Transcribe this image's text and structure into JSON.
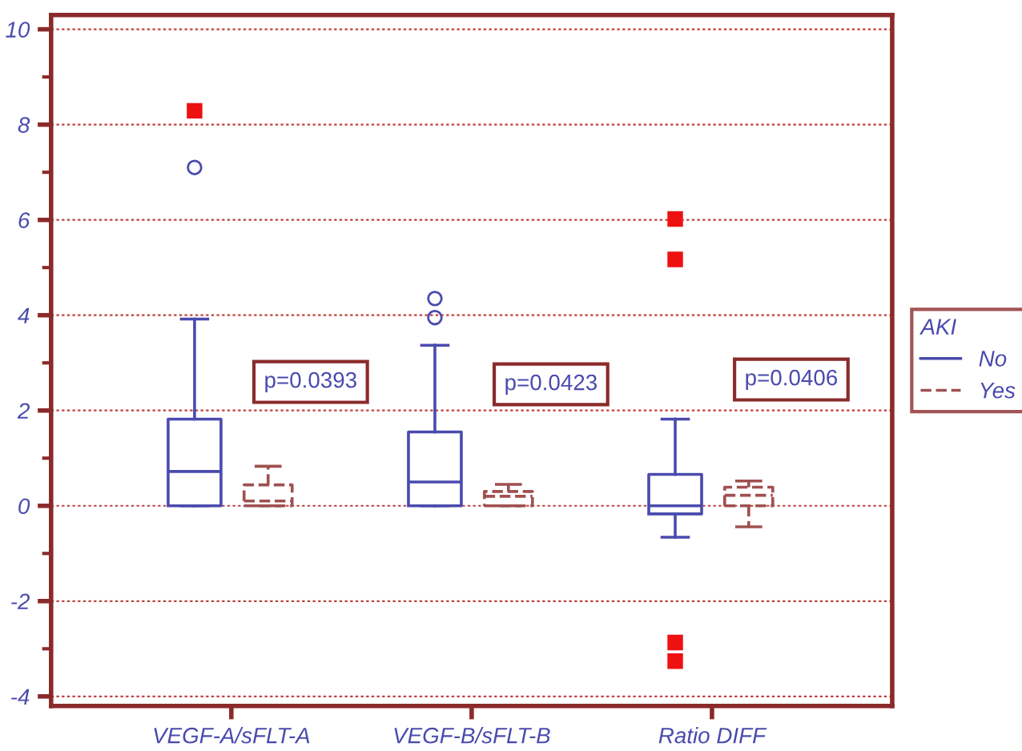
{
  "chart_data": {
    "type": "box",
    "categories": [
      "VEGF-A/sFLT-A",
      "VEGF-B/sFLT-B",
      "Ratio DIFF"
    ],
    "series": [
      {
        "name": "No",
        "color": "#4a4aae",
        "line_style": "solid",
        "boxes": [
          {
            "low": 0,
            "q1": 0,
            "median": 0.72,
            "q3": 1.82,
            "high": 3.92,
            "outliers": [
              7.1,
              8.29
            ]
          },
          {
            "low": 0,
            "q1": 0,
            "median": 0.5,
            "q3": 1.55,
            "high": 3.37,
            "outliers": [
              3.95,
              4.35
            ]
          },
          {
            "low": -0.66,
            "q1": -0.17,
            "median": 0,
            "q3": 0.66,
            "high": 1.82,
            "outliers": [
              6.02,
              5.17,
              -2.87,
              -3.26
            ]
          }
        ]
      },
      {
        "name": "Yes",
        "color": "#a05050",
        "line_style": "dashed",
        "boxes": [
          {
            "low": 0,
            "q1": 0,
            "median": 0.1,
            "q3": 0.44,
            "high": 0.83
          },
          {
            "low": 0,
            "q1": 0,
            "median": 0.2,
            "q3": 0.3,
            "high": 0.45
          },
          {
            "low": -0.44,
            "q1": 0,
            "median": 0.22,
            "q3": 0.39,
            "high": 0.52
          }
        ]
      }
    ],
    "ylim": [
      -4.2,
      10.3
    ],
    "yticks": [
      -4,
      -2,
      0,
      2,
      4,
      6,
      8,
      10
    ],
    "grid": "y",
    "legend": "right",
    "legend_title": "AKI",
    "annotations": [
      "p=0.0393",
      "p=0.0423",
      "p=0.0406"
    ]
  }
}
